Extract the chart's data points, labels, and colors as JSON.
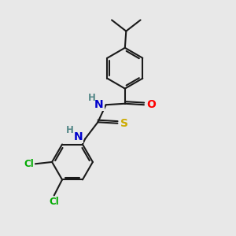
{
  "bg_color": "#e8e8e8",
  "bond_color": "#1a1a1a",
  "bond_width": 1.5,
  "atom_colors": {
    "N": "#0000cc",
    "O": "#ff0000",
    "S": "#ccaa00",
    "Cl": "#00aa00",
    "H": "#558888",
    "C": "#1a1a1a"
  },
  "fs_main": 10,
  "fs_small": 8.5
}
